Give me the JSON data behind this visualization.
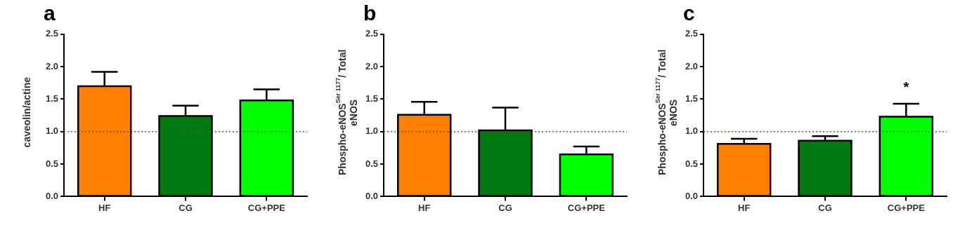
{
  "chart_data": [
    {
      "type": "bar",
      "title": "a",
      "ylabel": "caveolin/actine",
      "categories": [
        "HF",
        "CG",
        "CG+PPE"
      ],
      "values": [
        1.7,
        1.24,
        1.48
      ],
      "colors": [
        "#ff8000",
        "#007a10",
        "#00ff00"
      ],
      "errors": [
        [
          1.7,
          1.92
        ],
        [
          1.24,
          1.4
        ],
        [
          1.48,
          1.65
        ]
      ],
      "ylim": [
        0,
        2.5
      ],
      "yticks": [
        {
          "value": 0,
          "label": "0.0"
        },
        {
          "value": 0.5,
          "label": "0.5"
        },
        {
          "value": 1,
          "label": "1.0"
        },
        {
          "value": 1.5,
          "label": "1.5"
        },
        {
          "value": 2,
          "label": "2.0"
        },
        {
          "value": 2.5,
          "label": "2.5"
        }
      ],
      "ref_lines": [
        {
          "axis": "y",
          "value": 1,
          "color": "#555555",
          "line_style": "dotted"
        }
      ]
    },
    {
      "type": "bar",
      "title": "b",
      "ylabel": "Phospho-eNOS$^{Ser 1177}$/ Total eNOS",
      "categories": [
        "HF",
        "CG",
        "CG+PPE"
      ],
      "values": [
        1.26,
        1.02,
        0.65
      ],
      "colors": [
        "#ff8000",
        "#007a10",
        "#00ff00"
      ],
      "errors": [
        [
          1.26,
          1.46
        ],
        [
          1.02,
          1.37
        ],
        [
          0.65,
          0.77
        ]
      ],
      "ylim": [
        0,
        2.5
      ],
      "yticks": [
        {
          "value": 0,
          "label": "0.0"
        },
        {
          "value": 0.5,
          "label": "0.5"
        },
        {
          "value": 1,
          "label": "1.0"
        },
        {
          "value": 1.5,
          "label": "1.5"
        },
        {
          "value": 2,
          "label": "2.0"
        },
        {
          "value": 2.5,
          "label": "2.5"
        }
      ],
      "ref_lines": [
        {
          "axis": "y",
          "value": 1,
          "color": "#555555",
          "line_style": "dotted"
        }
      ]
    },
    {
      "type": "bar",
      "title": "c",
      "ylabel": "Phospho-eNOS$^{Ser 1177}$/ Total eNOS",
      "categories": [
        "HF",
        "CG",
        "CG+PPE"
      ],
      "values": [
        0.81,
        0.86,
        1.23
      ],
      "colors": [
        "#ff8000",
        "#007a10",
        "#00ff00"
      ],
      "errors": [
        [
          0.81,
          0.89
        ],
        [
          0.86,
          0.93
        ],
        [
          1.23,
          1.43
        ]
      ],
      "ylim": [
        0,
        2.5
      ],
      "yticks": [
        {
          "value": 0,
          "label": "0.0"
        },
        {
          "value": 0.5,
          "label": "0.5"
        },
        {
          "value": 1,
          "label": "1.0"
        },
        {
          "value": 1.5,
          "label": "1.5"
        },
        {
          "value": 2,
          "label": "2.0"
        },
        {
          "value": 2.5,
          "label": "2.5"
        }
      ],
      "ref_lines": [
        {
          "axis": "y",
          "value": 1,
          "color": "#555555",
          "line_style": "dotted"
        }
      ],
      "annotations": [
        {
          "text": "*",
          "x": "CG+PPE",
          "y": 1.43
        }
      ]
    }
  ]
}
